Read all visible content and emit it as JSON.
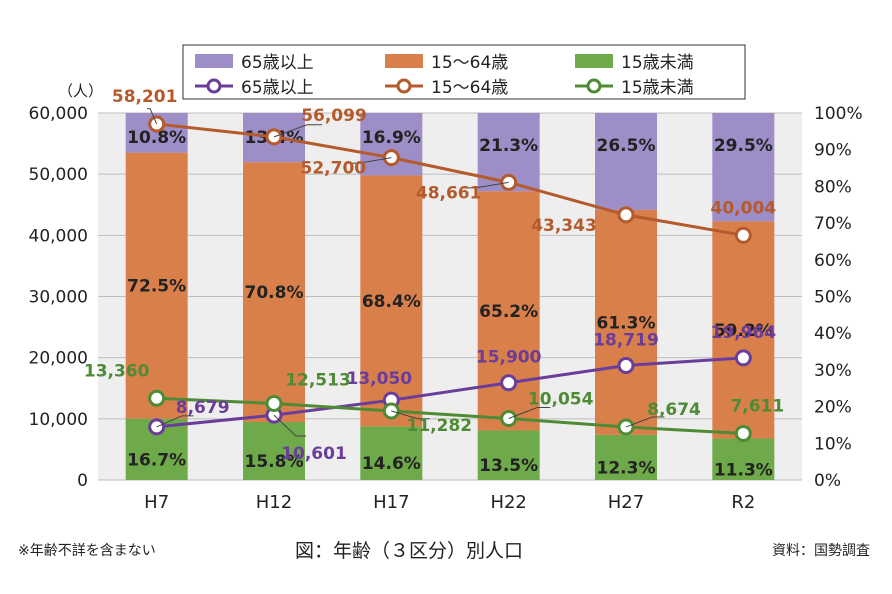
{
  "footer": {
    "note": "※年齢不詳を含まない",
    "caption": "図：年齢（３区分）別人口",
    "source": "資料：国勢調査"
  },
  "chart_data": {
    "type": "bar",
    "title": "",
    "categories": [
      "H7",
      "H12",
      "H17",
      "H22",
      "H27",
      "R2"
    ],
    "y_left": {
      "unit_label": "（人）",
      "range": [
        0,
        60000
      ],
      "ticks": [
        "0",
        "10,000",
        "20,000",
        "30,000",
        "40,000",
        "50,000",
        "60,000"
      ]
    },
    "y_right": {
      "range": [
        0,
        100
      ],
      "ticks": [
        "0%",
        "10%",
        "20%",
        "30%",
        "40%",
        "50%",
        "60%",
        "70%",
        "80%",
        "90%",
        "100%"
      ]
    },
    "grid": true,
    "legend": {
      "placement": "top",
      "bar_entries": [
        "65歳以上",
        "15～64歳",
        "15歳未満"
      ],
      "line_entries": [
        "65歳以上",
        "15～64歳",
        "15歳未満"
      ]
    },
    "colors": {
      "over65": "#9d8ec7",
      "age15_64": "#d9804a",
      "under15": "#6faa4a",
      "line_over65": "#6a3d9a",
      "line_15_64": "#b55a2c",
      "line_under15": "#4f8a35",
      "plot_bg": "#eeeeee"
    },
    "stacked_bar_percent": {
      "under15": [
        16.7,
        15.8,
        14.6,
        13.5,
        12.3,
        11.3
      ],
      "age15_64": [
        72.5,
        70.8,
        68.4,
        65.2,
        61.3,
        59.2
      ],
      "over65": [
        10.8,
        13.4,
        16.9,
        21.3,
        26.5,
        29.5
      ]
    },
    "series": [
      {
        "name": "65歳以上",
        "values": [
          8679,
          10601,
          13050,
          15900,
          18719,
          19964
        ],
        "labels": [
          "8,679",
          "10,601",
          "13,050",
          "15,900",
          "18,719",
          "19,964"
        ]
      },
      {
        "name": "15～64歳",
        "values": [
          58201,
          56099,
          52700,
          48661,
          43343,
          40004
        ],
        "labels": [
          "58,201",
          "56,099",
          "52,700",
          "48,661",
          "43,343",
          "40,004"
        ]
      },
      {
        "name": "15歳未満",
        "values": [
          13360,
          12513,
          11282,
          10054,
          8674,
          7611
        ],
        "labels": [
          "13,360",
          "12,513",
          "11,282",
          "10,054",
          "8,674",
          "7,611"
        ]
      }
    ]
  }
}
